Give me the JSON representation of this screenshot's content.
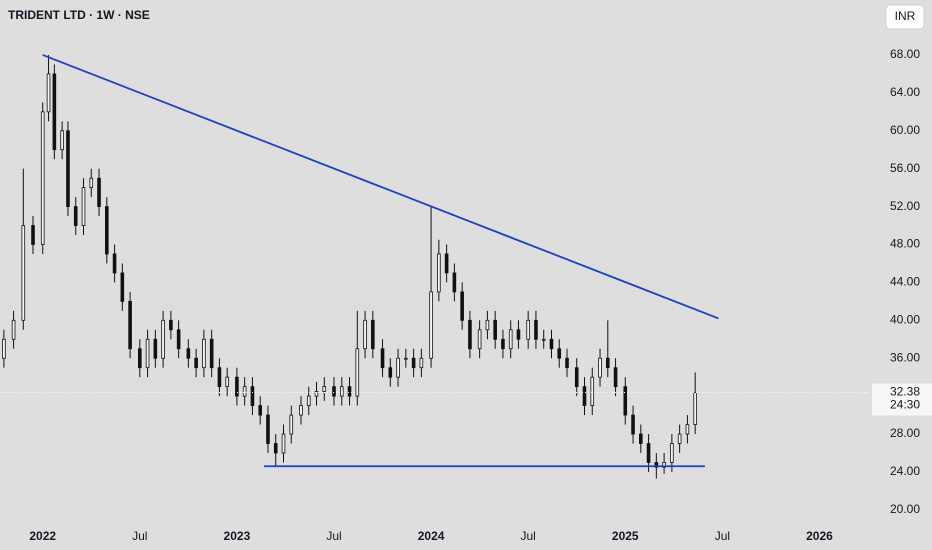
{
  "chart_data": {
    "type": "candlestick",
    "title": "TRIDENT LTD · 1W · NSE",
    "currency": "INR",
    "countdown": "24:30",
    "background": "#dedede",
    "up_color": "#f4f4f4",
    "down_color": "#111111",
    "wick_color": "#111111",
    "xlim": [
      2021.78,
      2026.25
    ],
    "ylim": [
      18.4,
      73.8
    ],
    "xticks": [
      {
        "value": 2022,
        "label": "2022"
      },
      {
        "value": 2022.5,
        "label": "Jul"
      },
      {
        "value": 2023,
        "label": "2023"
      },
      {
        "value": 2023.5,
        "label": "Jul"
      },
      {
        "value": 2024,
        "label": "2024"
      },
      {
        "value": 2024.5,
        "label": "Jul"
      },
      {
        "value": 2025,
        "label": "2025"
      },
      {
        "value": 2025.5,
        "label": "Jul"
      },
      {
        "value": 2026,
        "label": "2026"
      }
    ],
    "yticks": [
      {
        "value": 20,
        "label": "20.00"
      },
      {
        "value": 24,
        "label": "24.00"
      },
      {
        "value": 28,
        "label": "28.00"
      },
      {
        "value": 36,
        "label": "36.00"
      },
      {
        "value": 40,
        "label": "40.00"
      },
      {
        "value": 44,
        "label": "44.00"
      },
      {
        "value": 48,
        "label": "48.00"
      },
      {
        "value": 52,
        "label": "52.00"
      },
      {
        "value": 56,
        "label": "56.00"
      },
      {
        "value": 60,
        "label": "60.00"
      },
      {
        "value": 64,
        "label": "64.00"
      },
      {
        "value": 68,
        "label": "68.00"
      }
    ],
    "x": [
      2021.8,
      2021.85,
      2021.9,
      2021.95,
      2022.0,
      2022.03,
      2022.06,
      2022.1,
      2022.13,
      2022.17,
      2022.21,
      2022.25,
      2022.29,
      2022.33,
      2022.37,
      2022.41,
      2022.45,
      2022.5,
      2022.54,
      2022.58,
      2022.62,
      2022.66,
      2022.7,
      2022.75,
      2022.79,
      2022.83,
      2022.87,
      2022.91,
      2022.95,
      2023.0,
      2023.04,
      2023.08,
      2023.12,
      2023.16,
      2023.2,
      2023.24,
      2023.28,
      2023.33,
      2023.37,
      2023.41,
      2023.45,
      2023.5,
      2023.54,
      2023.58,
      2023.62,
      2023.66,
      2023.7,
      2023.75,
      2023.79,
      2023.83,
      2023.87,
      2023.91,
      2023.95,
      2024.0,
      2024.04,
      2024.08,
      2024.12,
      2024.16,
      2024.2,
      2024.25,
      2024.29,
      2024.33,
      2024.37,
      2024.41,
      2024.45,
      2024.5,
      2024.54,
      2024.58,
      2024.62,
      2024.66,
      2024.7,
      2024.75,
      2024.79,
      2024.83,
      2024.87,
      2024.91,
      2024.95,
      2025.0,
      2025.04,
      2025.08,
      2025.12,
      2025.16,
      2025.2,
      2025.24,
      2025.28,
      2025.32,
      2025.36
    ],
    "open": [
      36,
      38,
      40,
      50,
      48,
      62,
      66,
      58,
      60,
      52,
      50,
      54,
      55,
      52,
      47,
      45,
      42,
      37,
      35,
      38,
      36,
      40,
      39,
      37,
      36,
      35,
      38,
      35,
      33,
      34,
      32,
      33,
      31,
      30,
      27,
      26,
      28,
      30,
      31,
      32,
      32.5,
      33,
      32,
      33,
      32,
      37,
      40,
      37,
      35,
      34,
      36,
      36,
      35,
      36,
      43,
      47,
      45,
      43,
      40,
      37,
      39,
      40,
      38,
      37,
      39,
      38,
      40,
      38,
      38,
      37,
      36,
      35,
      33,
      31,
      34,
      36,
      35,
      33,
      30,
      28,
      27,
      25,
      24.5,
      25,
      27,
      28,
      29
    ],
    "high": [
      39,
      41,
      56,
      51,
      63,
      68,
      67,
      61,
      61,
      53,
      55,
      56,
      56,
      53,
      48,
      46,
      43,
      38,
      39,
      39,
      41,
      41,
      40,
      38,
      37,
      39,
      39,
      36,
      35,
      35,
      34,
      34,
      32,
      31,
      28,
      29,
      31,
      32,
      33,
      33.5,
      34,
      34,
      34,
      34,
      41,
      41,
      41,
      38,
      36,
      37,
      37,
      37,
      37,
      52,
      48.5,
      48,
      46,
      44,
      41,
      40,
      41,
      41,
      39,
      40,
      40,
      41,
      41,
      39,
      39,
      38,
      37,
      36,
      34,
      35,
      37,
      40,
      36,
      34,
      31,
      29,
      28,
      26,
      26,
      28,
      29,
      30,
      34.5
    ],
    "low": [
      35,
      37,
      39,
      47,
      47,
      61,
      57,
      57,
      51,
      49,
      49,
      53,
      51,
      46,
      44,
      41,
      36,
      34,
      34,
      35,
      35,
      38,
      36,
      35,
      34,
      34,
      34,
      32,
      32,
      31,
      31,
      30,
      29,
      26,
      24.6,
      25,
      27,
      29,
      30,
      31,
      31.5,
      31,
      31,
      31,
      31,
      36,
      36,
      34,
      33,
      33,
      35,
      34,
      34,
      35,
      42,
      44,
      42,
      39,
      36,
      36,
      38,
      37,
      36,
      36,
      37,
      37,
      37,
      37,
      36,
      35,
      34,
      32,
      30,
      30,
      33,
      34,
      32,
      29,
      27,
      26,
      24,
      23.3,
      23.8,
      24,
      26,
      27,
      28
    ],
    "close": [
      38,
      40,
      50,
      48,
      62,
      66,
      58,
      60,
      52,
      50,
      54,
      55,
      52,
      47,
      45,
      42,
      37,
      35,
      38,
      36,
      40,
      39,
      37,
      36,
      35,
      38,
      35,
      33,
      34,
      32,
      33,
      31,
      30,
      27,
      26,
      28,
      30,
      31,
      32,
      32.5,
      33,
      32,
      33,
      32,
      37,
      40,
      37,
      35,
      34,
      36,
      36,
      35,
      36,
      43,
      47,
      45,
      43,
      40,
      37,
      39,
      40,
      38,
      37,
      39,
      38,
      40,
      38,
      38,
      37,
      36,
      35,
      33,
      31,
      34,
      36,
      35,
      33,
      30,
      28,
      27,
      25,
      24.5,
      25,
      27,
      28,
      29,
      32.38
    ],
    "trendlines": [
      {
        "color": "#1d3fc4",
        "x": [
          2022.0,
          2025.48
        ],
        "y": [
          68,
          40.2
        ]
      },
      {
        "color": "#1d3fc4",
        "x": [
          2023.14,
          2025.41
        ],
        "y": [
          24.6,
          24.6
        ]
      }
    ]
  }
}
